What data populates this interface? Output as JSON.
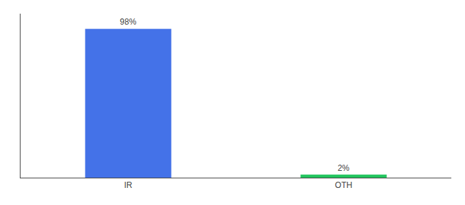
{
  "chart_data": {
    "type": "bar",
    "categories": [
      "IR",
      "OTH"
    ],
    "values": [
      98,
      2
    ],
    "value_labels": [
      "98%",
      "2%"
    ],
    "data_labels": true,
    "colors": [
      "#4472E8",
      "#22C55E"
    ],
    "ylim": [
      0,
      108
    ],
    "yticks": [],
    "tick_labels": "x",
    "grid": false
  }
}
